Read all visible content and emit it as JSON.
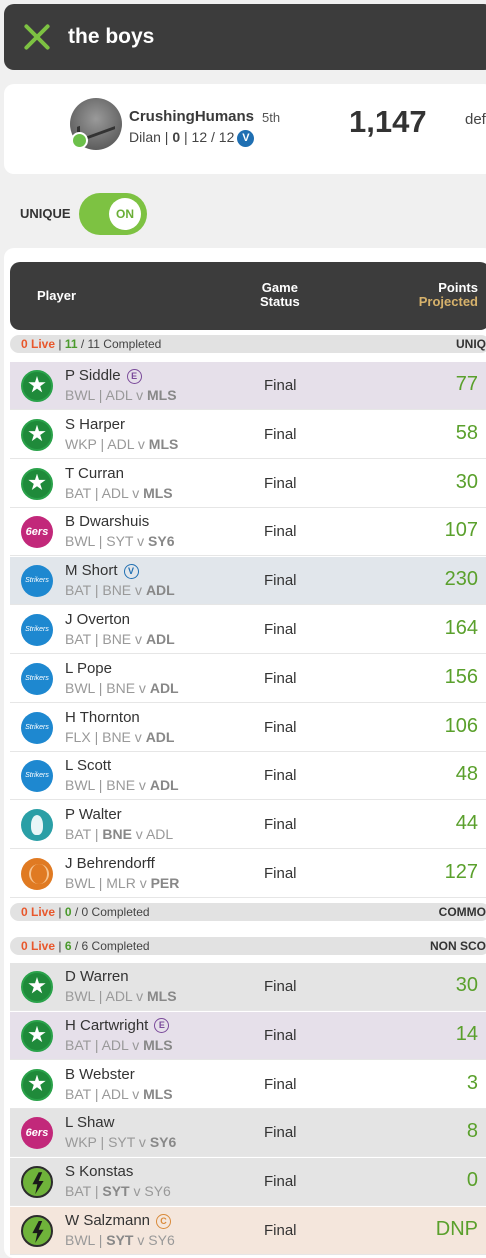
{
  "header": {
    "title": "the boys"
  },
  "user": {
    "name": "CrushingHumans",
    "rank": "5th",
    "sub_prefix": "Dilan | ",
    "sub_bold": "0",
    "sub_suffix": " | 12 / 12",
    "badge": "V",
    "score": "1,147",
    "right_cut": "def"
  },
  "unique": {
    "label": "UNIQUE",
    "toggle": "ON"
  },
  "table_header": {
    "player": "Player",
    "game": "Game",
    "status": "Status",
    "points": "Points",
    "projected": "Projected"
  },
  "sections": [
    {
      "live": "0 Live",
      "sep1": " | ",
      "count": "11",
      "rest": " / 11 Completed",
      "right": "UNIQ"
    },
    {
      "live": "0 Live",
      "sep1": " | ",
      "count": "0",
      "rest": " / 0 Completed",
      "right": "COMMO"
    },
    {
      "live": "0 Live",
      "sep1": " | ",
      "count": "6",
      "rest": " / 6 Completed",
      "right": "NON SCO"
    }
  ],
  "rows": [
    {
      "name": "P Siddle",
      "badge": "E",
      "pos": "BWL",
      "t1": "ADL",
      "vs": " v ",
      "t2": "MLS",
      "bold": 2,
      "status": "Final",
      "points": "77",
      "logo": "star",
      "bg": "#e6e0ea"
    },
    {
      "name": "S Harper",
      "badge": "",
      "pos": "WKP",
      "t1": "ADL",
      "vs": " v ",
      "t2": "MLS",
      "bold": 2,
      "status": "Final",
      "points": "58",
      "logo": "star",
      "bg": "#ffffff"
    },
    {
      "name": "T Curran",
      "badge": "",
      "pos": "BAT",
      "t1": "ADL",
      "vs": " v ",
      "t2": "MLS",
      "bold": 2,
      "status": "Final",
      "points": "30",
      "logo": "star",
      "bg": "#ffffff"
    },
    {
      "name": "B Dwarshuis",
      "badge": "",
      "pos": "BWL",
      "t1": "SYT",
      "vs": " v ",
      "t2": "SY6",
      "bold": 2,
      "status": "Final",
      "points": "107",
      "logo": "six",
      "bg": "#ffffff"
    },
    {
      "name": "M Short",
      "badge": "V",
      "pos": "BAT",
      "t1": "BNE",
      "vs": " v ",
      "t2": "ADL",
      "bold": 2,
      "status": "Final",
      "points": "230",
      "logo": "str",
      "bg": "#e1e6eb"
    },
    {
      "name": "J Overton",
      "badge": "",
      "pos": "BAT",
      "t1": "BNE",
      "vs": " v ",
      "t2": "ADL",
      "bold": 2,
      "status": "Final",
      "points": "164",
      "logo": "str",
      "bg": "#ffffff"
    },
    {
      "name": "L Pope",
      "badge": "",
      "pos": "BWL",
      "t1": "BNE",
      "vs": " v ",
      "t2": "ADL",
      "bold": 2,
      "status": "Final",
      "points": "156",
      "logo": "str",
      "bg": "#ffffff"
    },
    {
      "name": "H Thornton",
      "badge": "",
      "pos": "FLX",
      "t1": "BNE",
      "vs": " v ",
      "t2": "ADL",
      "bold": 2,
      "status": "Final",
      "points": "106",
      "logo": "str",
      "bg": "#ffffff"
    },
    {
      "name": "L Scott",
      "badge": "",
      "pos": "BWL",
      "t1": "BNE",
      "vs": " v ",
      "t2": "ADL",
      "bold": 2,
      "status": "Final",
      "points": "48",
      "logo": "str",
      "bg": "#ffffff"
    },
    {
      "name": "P Walter",
      "badge": "",
      "pos": "BAT",
      "t1": "BNE",
      "vs": " v ",
      "t2": "ADL",
      "bold": 1,
      "status": "Final",
      "points": "44",
      "logo": "hur",
      "bg": "#ffffff"
    },
    {
      "name": "J Behrendorff",
      "badge": "",
      "pos": "BWL",
      "t1": "MLR",
      "vs": " v ",
      "t2": "PER",
      "bold": 2,
      "status": "Final",
      "points": "127",
      "logo": "ren",
      "bg": "#ffffff"
    },
    {
      "name": "D Warren",
      "badge": "",
      "pos": "BWL",
      "t1": "ADL",
      "vs": " v ",
      "t2": "MLS",
      "bold": 2,
      "status": "Final",
      "points": "30",
      "logo": "star",
      "bg": "#e4e4e4"
    },
    {
      "name": "H Cartwright",
      "badge": "E",
      "pos": "BAT",
      "t1": "ADL",
      "vs": " v ",
      "t2": "MLS",
      "bold": 2,
      "status": "Final",
      "points": "14",
      "logo": "star",
      "bg": "#e6e0ea"
    },
    {
      "name": "B Webster",
      "badge": "",
      "pos": "BAT",
      "t1": "ADL",
      "vs": " v ",
      "t2": "MLS",
      "bold": 2,
      "status": "Final",
      "points": "3",
      "logo": "star",
      "bg": "#ffffff"
    },
    {
      "name": "L Shaw",
      "badge": "",
      "pos": "WKP",
      "t1": "SYT",
      "vs": " v ",
      "t2": "SY6",
      "bold": 2,
      "status": "Final",
      "points": "8",
      "logo": "six",
      "bg": "#e4e4e4"
    },
    {
      "name": "S Konstas",
      "badge": "",
      "pos": "BAT",
      "t1": "SYT",
      "vs": " v ",
      "t2": "SY6",
      "bold": 1,
      "status": "Final",
      "points": "0",
      "logo": "thu",
      "bg": "#e4e4e4"
    },
    {
      "name": "W Salzmann",
      "badge": "C",
      "pos": "BWL",
      "t1": "SYT",
      "vs": " v ",
      "t2": "SY6",
      "bold": 1,
      "status": "Final",
      "points": "DNP",
      "logo": "thu",
      "bg": "#f4e6dc"
    }
  ],
  "colors": {
    "accent": "#7dc242",
    "points": "#5aa02c",
    "live": "#e8572c",
    "badge_e": "#7a4a9a",
    "badge_v": "#1f6fb2",
    "badge_c": "#d98a3a"
  },
  "six_text": "6ers",
  "str_text": "Strikers"
}
